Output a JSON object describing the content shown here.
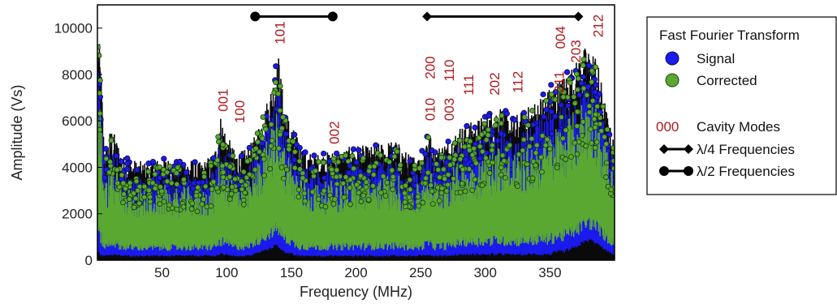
{
  "chart_data": {
    "type": "scatter",
    "xlabel": "Frequency (MHz)",
    "ylabel": "Amplitude (Vs)",
    "xlim": [
      0,
      400
    ],
    "ylim": [
      0,
      11000
    ],
    "xticks": [
      50,
      100,
      150,
      200,
      250,
      300,
      350
    ],
    "yticks": [
      0,
      2000,
      4000,
      6000,
      8000,
      10000
    ],
    "grid": false,
    "series": [
      {
        "name": "Signal",
        "color": "#1a1aee",
        "envelope": {
          "x": [
            0,
            2,
            5,
            10,
            20,
            30,
            40,
            50,
            60,
            70,
            80,
            90,
            95,
            100,
            105,
            110,
            115,
            120,
            125,
            130,
            135,
            138,
            140,
            142,
            145,
            150,
            155,
            160,
            170,
            180,
            190,
            200,
            210,
            220,
            230,
            240,
            250,
            255,
            260,
            270,
            280,
            290,
            300,
            310,
            320,
            330,
            340,
            350,
            355,
            360,
            365,
            370,
            375,
            380,
            385,
            390,
            395,
            400
          ],
          "max": [
            9900,
            8800,
            4500,
            5800,
            4500,
            4300,
            4200,
            4500,
            4300,
            4400,
            4200,
            4700,
            6300,
            5400,
            4800,
            4700,
            4800,
            5200,
            6000,
            6800,
            7800,
            8600,
            8900,
            7600,
            6600,
            5800,
            5200,
            4700,
            4600,
            4700,
            4800,
            5000,
            4900,
            5100,
            5200,
            4600,
            4500,
            5800,
            4800,
            5200,
            5800,
            6000,
            6300,
            6800,
            6200,
            6500,
            7000,
            7500,
            7800,
            8000,
            8300,
            8600,
            9200,
            9200,
            9000,
            7500,
            6000,
            5000
          ],
          "min": [
            300,
            200,
            150,
            200,
            150,
            150,
            150,
            150,
            150,
            150,
            150,
            150,
            200,
            200,
            150,
            150,
            150,
            200,
            300,
            400,
            500,
            600,
            500,
            400,
            300,
            200,
            150,
            150,
            150,
            150,
            150,
            150,
            150,
            150,
            150,
            150,
            150,
            200,
            150,
            150,
            200,
            200,
            200,
            200,
            200,
            200,
            200,
            200,
            300,
            300,
            400,
            500,
            700,
            800,
            700,
            500,
            300,
            200
          ]
        }
      },
      {
        "name": "Corrected",
        "color": "#5aa832",
        "envelope": {
          "x": [
            0,
            2,
            5,
            10,
            20,
            30,
            40,
            50,
            60,
            70,
            80,
            90,
            95,
            100,
            105,
            110,
            115,
            120,
            125,
            130,
            135,
            138,
            140,
            142,
            145,
            150,
            155,
            160,
            170,
            180,
            190,
            200,
            210,
            220,
            230,
            240,
            250,
            255,
            260,
            270,
            280,
            290,
            300,
            310,
            320,
            330,
            340,
            350,
            355,
            360,
            365,
            370,
            375,
            380,
            385,
            390,
            395,
            400
          ],
          "max": [
            9700,
            8500,
            4200,
            5500,
            4200,
            4000,
            3900,
            4200,
            4000,
            4100,
            3900,
            4400,
            6000,
            5100,
            4500,
            4400,
            4500,
            4900,
            5700,
            6500,
            7500,
            8200,
            8400,
            7200,
            6300,
            5500,
            4900,
            4400,
            4300,
            4400,
            4500,
            4700,
            4600,
            4800,
            4900,
            4300,
            4200,
            5500,
            4500,
            4900,
            5500,
            5700,
            6000,
            6500,
            5900,
            6200,
            6700,
            7200,
            7500,
            7700,
            8000,
            8300,
            8800,
            8900,
            8700,
            7200,
            5700,
            4700
          ],
          "min": [
            400,
            300,
            200,
            300,
            200,
            200,
            200,
            200,
            200,
            200,
            200,
            200,
            300,
            300,
            200,
            200,
            200,
            300,
            400,
            500,
            600,
            700,
            600,
            500,
            400,
            300,
            200,
            200,
            200,
            200,
            200,
            200,
            200,
            200,
            200,
            200,
            200,
            300,
            200,
            200,
            300,
            300,
            300,
            300,
            300,
            300,
            300,
            300,
            400,
            400,
            500,
            600,
            800,
            900,
            800,
            600,
            400,
            300
          ]
        }
      }
    ],
    "cavity_modes": [
      {
        "label": "001",
        "x": 97,
        "y": 6400
      },
      {
        "label": "100",
        "x": 110,
        "y": 5900
      },
      {
        "label": "101",
        "x": 141,
        "y": 9300
      },
      {
        "label": "002",
        "x": 183,
        "y": 5000
      },
      {
        "label": "010",
        "x": 257,
        "y": 6000
      },
      {
        "label": "200",
        "x": 257,
        "y": 7800
      },
      {
        "label": "003",
        "x": 272,
        "y": 6000
      },
      {
        "label": "110",
        "x": 272,
        "y": 7700
      },
      {
        "label": "111",
        "x": 287,
        "y": 7100
      },
      {
        "label": "202",
        "x": 307,
        "y": 7100
      },
      {
        "label": "112",
        "x": 325,
        "y": 7200
      },
      {
        "label": "211",
        "x": 357,
        "y": 7200
      },
      {
        "label": "004",
        "x": 358,
        "y": 9100
      },
      {
        "label": "203",
        "x": 370,
        "y": 8500
      },
      {
        "label": "212",
        "x": 387,
        "y": 9600
      }
    ],
    "frequency_bars": [
      {
        "kind": "half",
        "x_start": 122,
        "x_end": 182,
        "y": 10500
      },
      {
        "kind": "quarter",
        "x_start": 255,
        "x_end": 372,
        "y": 10500
      }
    ],
    "legend": {
      "placement": "right",
      "title": "Fast Fourier Transform",
      "items": [
        {
          "label": "Signal",
          "marker": "circle",
          "color": "#1a1aee"
        },
        {
          "label": "Corrected",
          "marker": "circle",
          "color": "#5aa832"
        },
        {
          "label": "Cavity Modes",
          "marker": "text",
          "text": "000",
          "color": "#b0191e"
        },
        {
          "label": "λ/4 Frequencies",
          "marker": "diamond-line"
        },
        {
          "label": "λ/2 Frequencies",
          "marker": "circle-line"
        }
      ]
    }
  }
}
